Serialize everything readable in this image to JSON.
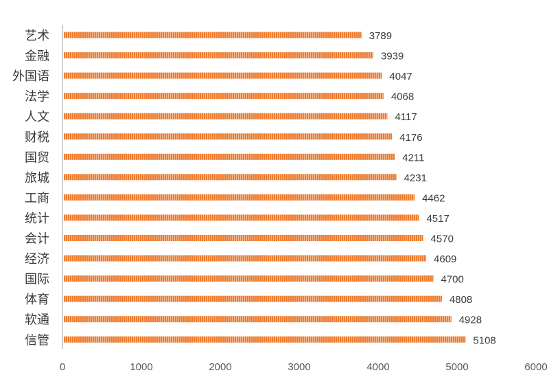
{
  "chart_data": {
    "type": "bar",
    "orientation": "horizontal",
    "categories": [
      "艺术",
      "金融",
      "外国语",
      "法学",
      "人文",
      "财税",
      "国贸",
      "旅城",
      "工商",
      "统计",
      "会计",
      "经济",
      "国际",
      "体育",
      "软通",
      "信管"
    ],
    "values": [
      3789,
      3939,
      4047,
      4068,
      4117,
      4176,
      4211,
      4231,
      4462,
      4517,
      4570,
      4609,
      4700,
      4808,
      4928,
      5108
    ],
    "x_ticks": [
      "0",
      "1000",
      "2000",
      "3000",
      "4000",
      "5000",
      "6000"
    ],
    "xlim": [
      0,
      6000
    ],
    "title": "",
    "xlabel": "",
    "ylabel": "",
    "grid": false,
    "data_labels": true,
    "colors": {
      "bar": "#ed7d31",
      "bar_stripe": "#f6b98f",
      "axis": "#bfbfbf"
    }
  }
}
